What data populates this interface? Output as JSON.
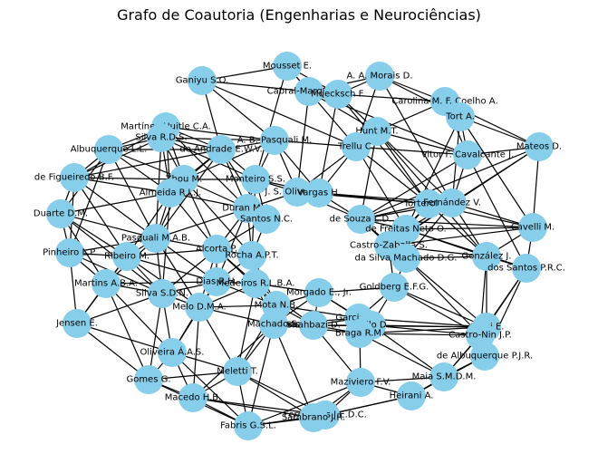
{
  "title": "Grafo de Coautoria (Engenharias e Neurociências)",
  "colors": {
    "node": "#87ceeb",
    "edge": "#000000",
    "background": "#ffffff"
  },
  "nodes": [
    {
      "id": "mousset",
      "label": "Mousset E."
    },
    {
      "id": "ganiyu",
      "label": "Ganiyu S.O."
    },
    {
      "id": "cabral",
      "label": "Cabral-Marques O."
    },
    {
      "id": "morais",
      "label": "A. A. Morais D."
    },
    {
      "id": "muecksch",
      "label": "Muecksch F."
    },
    {
      "id": "carolina",
      "label": "Carolina M. F. Coelho A."
    },
    {
      "id": "tort",
      "label": "Tort A."
    },
    {
      "id": "martinez",
      "label": "Martínez-Huitle C.A."
    },
    {
      "id": "silvard",
      "label": "Silva R.D.S."
    },
    {
      "id": "pasquali_ab",
      "label": "A. B. Pasquali M."
    },
    {
      "id": "hunt",
      "label": "Hunt M.T."
    },
    {
      "id": "mateos",
      "label": "Mateos D."
    },
    {
      "id": "albuquerque_ll",
      "label": "Albuquerque L.L."
    },
    {
      "id": "andrade",
      "label": "de Andrade E.W.V."
    },
    {
      "id": "trellu",
      "label": "Trellu C."
    },
    {
      "id": "vitor",
      "label": "Vitor F. Cavalcante J."
    },
    {
      "id": "figueiredo",
      "label": "de Figueiredo B.F."
    },
    {
      "id": "zhou",
      "label": "Zhou M."
    },
    {
      "id": "monteiro",
      "label": "Monteiro S.S."
    },
    {
      "id": "js",
      "label": "J. S. Oliveira P."
    },
    {
      "id": "almeida",
      "label": "Almeida R.L.J."
    },
    {
      "id": "durand",
      "label": "Duran M.A."
    },
    {
      "id": "vargas",
      "label": "Vargas H."
    },
    {
      "id": "torterolo",
      "label": "Torterolo P."
    },
    {
      "id": "fernandez",
      "label": "Fernández V."
    },
    {
      "id": "duarte",
      "label": "Duarte D.M."
    },
    {
      "id": "santos_nc",
      "label": "Santos N.C."
    },
    {
      "id": "desouza",
      "label": "de Souza L.D."
    },
    {
      "id": "cavelli",
      "label": "Cavelli M."
    },
    {
      "id": "pasquali_ma",
      "label": "Pasquali M.A.B."
    },
    {
      "id": "freitas",
      "label": "de Freitas Neto O."
    },
    {
      "id": "pinheiro",
      "label": "Pinheiro L.P."
    },
    {
      "id": "ribeiro",
      "label": "Ribeiro M."
    },
    {
      "id": "alcorta",
      "label": "Alcorta P."
    },
    {
      "id": "rocha",
      "label": "Rocha A.P.T."
    },
    {
      "id": "castro_zab",
      "label": "Castro-Zaballa S."
    },
    {
      "id": "gonzalez",
      "label": "González J."
    },
    {
      "id": "dasilva",
      "label": "da Silva Machado D.G."
    },
    {
      "id": "dossantos",
      "label": "dos Santos P.R.C."
    },
    {
      "id": "martins",
      "label": "Martins A.B.A."
    },
    {
      "id": "dias",
      "label": "Dias R.H."
    },
    {
      "id": "medeiros",
      "label": "Medeiros R.L.B.A."
    },
    {
      "id": "goldberg",
      "label": "Goldberg E.F.G."
    },
    {
      "id": "silva_sdn",
      "label": "Silva S.D.N."
    },
    {
      "id": "morgado",
      "label": "Morgado E., Jr."
    },
    {
      "id": "mota",
      "label": "Mota N.B."
    },
    {
      "id": "melo",
      "label": "Melo D.M.A."
    },
    {
      "id": "garcia",
      "label": "Garcia J.R."
    },
    {
      "id": "jensen",
      "label": "Jensen E."
    },
    {
      "id": "machado",
      "label": "Machado S."
    },
    {
      "id": "shahbazi",
      "label": "Shahbazi D."
    },
    {
      "id": "gallo",
      "label": "Gallo D."
    },
    {
      "id": "amiri",
      "label": "Amiri E."
    },
    {
      "id": "braga",
      "label": "Braga R.M."
    },
    {
      "id": "castro_nin",
      "label": "Castro-Nin J.P."
    },
    {
      "id": "oliveira_aas",
      "label": "Oliveira Á.A.S."
    },
    {
      "id": "albuquerque_pjr",
      "label": "de Albuquerque P.J.R."
    },
    {
      "id": "meletti",
      "label": "Meletti T."
    },
    {
      "id": "gomes",
      "label": "Gomes G."
    },
    {
      "id": "maia",
      "label": "Maia S.M.D.M."
    },
    {
      "id": "maziviero",
      "label": "Maziviero F.V."
    },
    {
      "id": "macedo",
      "label": "Macedo H.B."
    },
    {
      "id": "heirani",
      "label": "Heirani A."
    },
    {
      "id": "fernandes",
      "label": "Fernandes J.E.D.C."
    },
    {
      "id": "sambrano",
      "label": "Sambrano J.R."
    },
    {
      "id": "fabris",
      "label": "Fabris G.S.L."
    }
  ],
  "edges": [
    [
      "ganiyu",
      "mousset"
    ],
    [
      "ganiyu",
      "cabral"
    ],
    [
      "ganiyu",
      "pasquali_ab"
    ],
    [
      "ganiyu",
      "trellu"
    ],
    [
      "ganiyu",
      "andrade"
    ],
    [
      "mousset",
      "cabral"
    ],
    [
      "mousset",
      "muecksch"
    ],
    [
      "mousset",
      "trellu"
    ],
    [
      "mousset",
      "monteiro"
    ],
    [
      "cabral",
      "morais"
    ],
    [
      "cabral",
      "muecksch"
    ],
    [
      "cabral",
      "hunt"
    ],
    [
      "cabral",
      "vitor"
    ],
    [
      "cabral",
      "js"
    ],
    [
      "morais",
      "muecksch"
    ],
    [
      "morais",
      "carolina"
    ],
    [
      "morais",
      "tort"
    ],
    [
      "morais",
      "trellu"
    ],
    [
      "morais",
      "fernandez"
    ],
    [
      "muecksch",
      "carolina"
    ],
    [
      "muecksch",
      "hunt"
    ],
    [
      "muecksch",
      "torterolo"
    ],
    [
      "muecksch",
      "vargas"
    ],
    [
      "carolina",
      "tort"
    ],
    [
      "carolina",
      "mateos"
    ],
    [
      "carolina",
      "vitor"
    ],
    [
      "carolina",
      "hunt"
    ],
    [
      "tort",
      "mateos"
    ],
    [
      "tort",
      "vitor"
    ],
    [
      "tort",
      "cavelli"
    ],
    [
      "tort",
      "freitas"
    ],
    [
      "tort",
      "fernandez"
    ],
    [
      "mateos",
      "vitor"
    ],
    [
      "mateos",
      "cavelli"
    ],
    [
      "mateos",
      "castro_zab"
    ],
    [
      "mateos",
      "fernandez"
    ],
    [
      "mateos",
      "desouza"
    ],
    [
      "hunt",
      "vitor"
    ],
    [
      "hunt",
      "trellu"
    ],
    [
      "hunt",
      "torterolo"
    ],
    [
      "hunt",
      "fernandez"
    ],
    [
      "hunt",
      "gonzalez"
    ],
    [
      "hunt",
      "desouza"
    ],
    [
      "vitor",
      "trellu"
    ],
    [
      "vitor",
      "fernandez"
    ],
    [
      "vitor",
      "dossantos"
    ],
    [
      "vitor",
      "desouza"
    ],
    [
      "trellu",
      "pasquali_ab"
    ],
    [
      "trellu",
      "vargas"
    ],
    [
      "trellu",
      "torterolo"
    ],
    [
      "trellu",
      "js"
    ],
    [
      "trellu",
      "freitas"
    ],
    [
      "pasquali_ab",
      "andrade"
    ],
    [
      "pasquali_ab",
      "monteiro"
    ],
    [
      "pasquali_ab",
      "js"
    ],
    [
      "pasquali_ab",
      "silvard"
    ],
    [
      "pasquali_ab",
      "martinez"
    ],
    [
      "pasquali_ab",
      "zhou"
    ],
    [
      "pasquali_ab",
      "vargas"
    ],
    [
      "martinez",
      "silvard"
    ],
    [
      "martinez",
      "albuquerque_ll"
    ],
    [
      "martinez",
      "andrade"
    ],
    [
      "martinez",
      "zhou"
    ],
    [
      "martinez",
      "almeida"
    ],
    [
      "martinez",
      "figueiredo"
    ],
    [
      "martinez",
      "durand"
    ],
    [
      "silvard",
      "albuquerque_ll"
    ],
    [
      "silvard",
      "andrade"
    ],
    [
      "silvard",
      "zhou"
    ],
    [
      "silvard",
      "almeida"
    ],
    [
      "silvard",
      "figueiredo"
    ],
    [
      "silvard",
      "pasquali_ma"
    ],
    [
      "silvard",
      "monteiro"
    ],
    [
      "albuquerque_ll",
      "andrade"
    ],
    [
      "albuquerque_ll",
      "figueiredo"
    ],
    [
      "albuquerque_ll",
      "zhou"
    ],
    [
      "albuquerque_ll",
      "almeida"
    ],
    [
      "albuquerque_ll",
      "duarte"
    ],
    [
      "albuquerque_ll",
      "pasquali_ma"
    ],
    [
      "albuquerque_ll",
      "pinheiro"
    ],
    [
      "andrade",
      "zhou"
    ],
    [
      "andrade",
      "almeida"
    ],
    [
      "andrade",
      "monteiro"
    ],
    [
      "andrade",
      "durand"
    ],
    [
      "andrade",
      "santos_nc"
    ],
    [
      "andrade",
      "pasquali_ma"
    ],
    [
      "andrade",
      "figueiredo"
    ],
    [
      "figueiredo",
      "zhou"
    ],
    [
      "figueiredo",
      "almeida"
    ],
    [
      "figueiredo",
      "duarte"
    ],
    [
      "figueiredo",
      "pinheiro"
    ],
    [
      "figueiredo",
      "pasquali_ma"
    ],
    [
      "figueiredo",
      "ribeiro"
    ],
    [
      "zhou",
      "almeida"
    ],
    [
      "zhou",
      "monteiro"
    ],
    [
      "zhou",
      "durand"
    ],
    [
      "zhou",
      "pasquali_ma"
    ],
    [
      "zhou",
      "alcorta"
    ],
    [
      "zhou",
      "rocha"
    ],
    [
      "almeida",
      "durand"
    ],
    [
      "almeida",
      "pasquali_ma"
    ],
    [
      "almeida",
      "duarte"
    ],
    [
      "almeida",
      "ribeiro"
    ],
    [
      "almeida",
      "alcorta"
    ],
    [
      "almeida",
      "silva_sdn"
    ],
    [
      "monteiro",
      "js"
    ],
    [
      "monteiro",
      "durand"
    ],
    [
      "monteiro",
      "santos_nc"
    ],
    [
      "monteiro",
      "vargas"
    ],
    [
      "monteiro",
      "rocha"
    ],
    [
      "js",
      "vargas"
    ],
    [
      "js",
      "torterolo"
    ],
    [
      "js",
      "desouza"
    ],
    [
      "js",
      "durand"
    ],
    [
      "vargas",
      "torterolo"
    ],
    [
      "vargas",
      "fernandez"
    ],
    [
      "vargas",
      "desouza"
    ],
    [
      "torterolo",
      "fernandez"
    ],
    [
      "torterolo",
      "desouza"
    ],
    [
      "torterolo",
      "freitas"
    ],
    [
      "torterolo",
      "cavelli"
    ],
    [
      "torterolo",
      "castro_zab"
    ],
    [
      "torterolo",
      "gonzalez"
    ],
    [
      "fernandez",
      "desouza"
    ],
    [
      "fernandez",
      "freitas"
    ],
    [
      "fernandez",
      "cavelli"
    ],
    [
      "fernandez",
      "castro_zab"
    ],
    [
      "fernandez",
      "gonzalez"
    ],
    [
      "fernandez",
      "dasilva"
    ],
    [
      "desouza",
      "freitas"
    ],
    [
      "desouza",
      "castro_zab"
    ],
    [
      "desouza",
      "dasilva"
    ],
    [
      "desouza",
      "cavelli"
    ],
    [
      "freitas",
      "castro_zab"
    ],
    [
      "freitas",
      "gonzalez"
    ],
    [
      "freitas",
      "dasilva"
    ],
    [
      "freitas",
      "cavelli"
    ],
    [
      "freitas",
      "dossantos"
    ],
    [
      "cavelli",
      "gonzalez"
    ],
    [
      "cavelli",
      "castro_zab"
    ],
    [
      "cavelli",
      "dossantos"
    ],
    [
      "castro_zab",
      "dasilva"
    ],
    [
      "castro_zab",
      "gonzalez"
    ],
    [
      "castro_zab",
      "goldberg"
    ],
    [
      "gonzalez",
      "dasilva"
    ],
    [
      "gonzalez",
      "dossantos"
    ],
    [
      "gonzalez",
      "amiri"
    ],
    [
      "gonzalez",
      "castro_nin"
    ],
    [
      "dasilva",
      "goldberg"
    ],
    [
      "dasilva",
      "amiri"
    ],
    [
      "dasilva",
      "castro_nin"
    ],
    [
      "dossantos",
      "amiri"
    ],
    [
      "dossantos",
      "castro_nin"
    ],
    [
      "dossantos",
      "albuquerque_pjr"
    ],
    [
      "durand",
      "santos_nc"
    ],
    [
      "durand",
      "pasquali_ma"
    ],
    [
      "durand",
      "alcorta"
    ],
    [
      "durand",
      "rocha"
    ],
    [
      "durand",
      "dias"
    ],
    [
      "santos_nc",
      "rocha"
    ],
    [
      "santos_nc",
      "alcorta"
    ],
    [
      "duarte",
      "pinheiro"
    ],
    [
      "duarte",
      "pasquali_ma"
    ],
    [
      "duarte",
      "ribeiro"
    ],
    [
      "duarte",
      "martins"
    ],
    [
      "duarte",
      "silva_sdn"
    ],
    [
      "pinheiro",
      "pasquali_ma"
    ],
    [
      "pinheiro",
      "ribeiro"
    ],
    [
      "pinheiro",
      "martins"
    ],
    [
      "pinheiro",
      "silva_sdn"
    ],
    [
      "pinheiro",
      "jensen"
    ],
    [
      "pasquali_ma",
      "ribeiro"
    ],
    [
      "pasquali_ma",
      "alcorta"
    ],
    [
      "pasquali_ma",
      "martins"
    ],
    [
      "pasquali_ma",
      "silva_sdn"
    ],
    [
      "pasquali_ma",
      "dias"
    ],
    [
      "pasquali_ma",
      "melo"
    ],
    [
      "ribeiro",
      "martins"
    ],
    [
      "ribeiro",
      "silva_sdn"
    ],
    [
      "ribeiro",
      "alcorta"
    ],
    [
      "ribeiro",
      "dias"
    ],
    [
      "ribeiro",
      "melo"
    ],
    [
      "ribeiro",
      "jensen"
    ],
    [
      "alcorta",
      "rocha"
    ],
    [
      "alcorta",
      "dias"
    ],
    [
      "alcorta",
      "medeiros"
    ],
    [
      "alcorta",
      "silva_sdn"
    ],
    [
      "alcorta",
      "melo"
    ],
    [
      "alcorta",
      "mota"
    ],
    [
      "rocha",
      "dias"
    ],
    [
      "rocha",
      "medeiros"
    ],
    [
      "rocha",
      "mota"
    ],
    [
      "rocha",
      "machado"
    ],
    [
      "martins",
      "silva_sdn"
    ],
    [
      "martins",
      "jensen"
    ],
    [
      "martins",
      "oliveira_aas"
    ],
    [
      "martins",
      "dias"
    ],
    [
      "dias",
      "medeiros"
    ],
    [
      "dias",
      "silva_sdn"
    ],
    [
      "dias",
      "melo"
    ],
    [
      "dias",
      "mota"
    ],
    [
      "dias",
      "oliveira_aas"
    ],
    [
      "medeiros",
      "mota"
    ],
    [
      "medeiros",
      "morgado"
    ],
    [
      "medeiros",
      "melo"
    ],
    [
      "medeiros",
      "machado"
    ],
    [
      "medeiros",
      "shahbazi"
    ],
    [
      "silva_sdn",
      "melo"
    ],
    [
      "silva_sdn",
      "oliveira_aas"
    ],
    [
      "silva_sdn",
      "jensen"
    ],
    [
      "silva_sdn",
      "gomes"
    ],
    [
      "melo",
      "oliveira_aas"
    ],
    [
      "melo",
      "meletti"
    ],
    [
      "melo",
      "machado"
    ],
    [
      "melo",
      "macedo"
    ],
    [
      "melo",
      "mota"
    ],
    [
      "mota",
      "machado"
    ],
    [
      "mota",
      "morgado"
    ],
    [
      "mota",
      "shahbazi"
    ],
    [
      "mota",
      "garcia"
    ],
    [
      "mota",
      "meletti"
    ],
    [
      "morgado",
      "machado"
    ],
    [
      "morgado",
      "garcia"
    ],
    [
      "morgado",
      "shahbazi"
    ],
    [
      "morgado",
      "gallo"
    ],
    [
      "morgado",
      "goldberg"
    ],
    [
      "machado",
      "shahbazi"
    ],
    [
      "machado",
      "garcia"
    ],
    [
      "machado",
      "meletti"
    ],
    [
      "machado",
      "braga"
    ],
    [
      "machado",
      "fabris"
    ],
    [
      "shahbazi",
      "garcia"
    ],
    [
      "shahbazi",
      "gallo"
    ],
    [
      "shahbazi",
      "braga"
    ],
    [
      "shahbazi",
      "amiri"
    ],
    [
      "shahbazi",
      "maziviero"
    ],
    [
      "garcia",
      "gallo"
    ],
    [
      "garcia",
      "braga"
    ],
    [
      "garcia",
      "goldberg"
    ],
    [
      "garcia",
      "amiri"
    ],
    [
      "gallo",
      "braga"
    ],
    [
      "gallo",
      "goldberg"
    ],
    [
      "gallo",
      "amiri"
    ],
    [
      "gallo",
      "castro_nin"
    ],
    [
      "gallo",
      "maia"
    ],
    [
      "braga",
      "amiri"
    ],
    [
      "braga",
      "castro_nin"
    ],
    [
      "braga",
      "maia"
    ],
    [
      "braga",
      "maziviero"
    ],
    [
      "goldberg",
      "amiri"
    ],
    [
      "goldberg",
      "castro_nin"
    ],
    [
      "amiri",
      "castro_nin"
    ],
    [
      "amiri",
      "albuquerque_pjr"
    ],
    [
      "amiri",
      "maia"
    ],
    [
      "castro_nin",
      "albuquerque_pjr"
    ],
    [
      "castro_nin",
      "maia"
    ],
    [
      "albuquerque_pjr",
      "maia"
    ],
    [
      "albuquerque_pjr",
      "heirani"
    ],
    [
      "maia",
      "heirani"
    ],
    [
      "maia",
      "maziviero"
    ],
    [
      "heirani",
      "maziviero"
    ],
    [
      "heirani",
      "fernandes"
    ],
    [
      "heirani",
      "sambrano"
    ],
    [
      "maziviero",
      "fernandes"
    ],
    [
      "maziviero",
      "sambrano"
    ],
    [
      "maziviero",
      "fabris"
    ],
    [
      "fernandes",
      "sambrano"
    ],
    [
      "fernandes",
      "fabris"
    ],
    [
      "fernandes",
      "macedo"
    ],
    [
      "fernandes",
      "meletti"
    ],
    [
      "sambrano",
      "fabris"
    ],
    [
      "sambrano",
      "macedo"
    ],
    [
      "sambrano",
      "meletti"
    ],
    [
      "sambrano",
      "machado"
    ],
    [
      "fabris",
      "macedo"
    ],
    [
      "fabris",
      "meletti"
    ],
    [
      "fabris",
      "gomes"
    ],
    [
      "fabris",
      "oliveira_aas"
    ],
    [
      "macedo",
      "meletti"
    ],
    [
      "macedo",
      "gomes"
    ],
    [
      "macedo",
      "oliveira_aas"
    ],
    [
      "macedo",
      "machado"
    ],
    [
      "meletti",
      "oliveira_aas"
    ],
    [
      "meletti",
      "gomes"
    ],
    [
      "meletti",
      "medeiros"
    ],
    [
      "oliveira_aas",
      "gomes"
    ],
    [
      "oliveira_aas",
      "jensen"
    ],
    [
      "gomes",
      "jensen"
    ],
    [
      "gomes",
      "martins"
    ]
  ]
}
